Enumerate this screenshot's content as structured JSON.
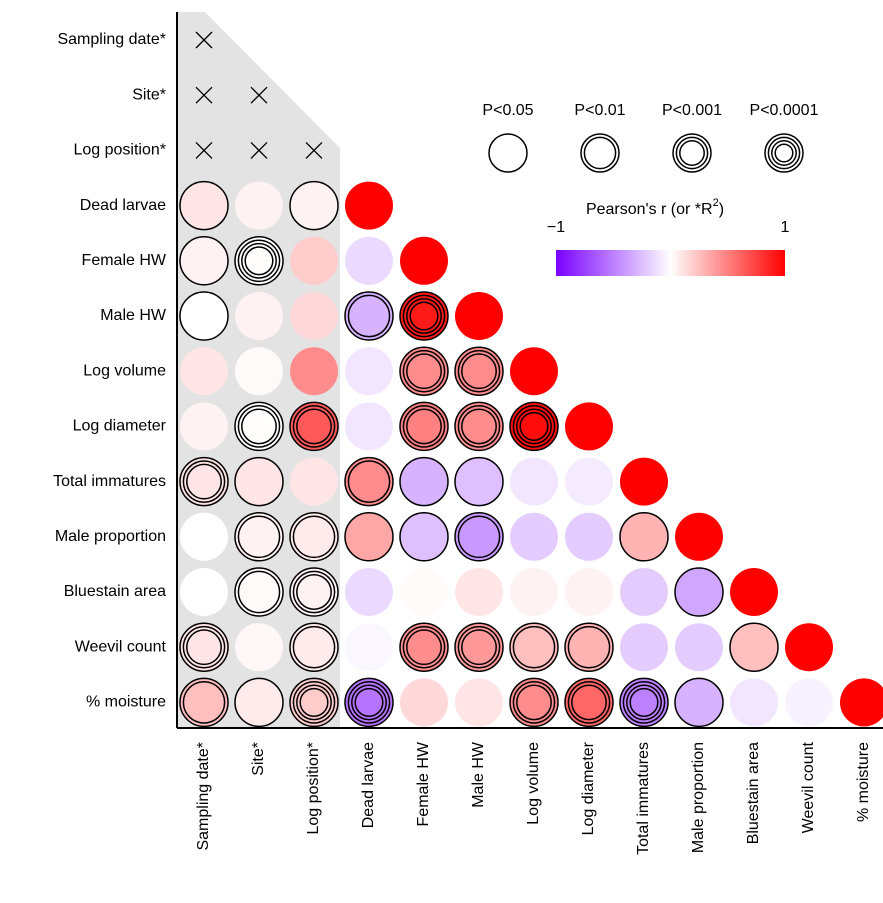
{
  "chart_data": {
    "type": "correlation",
    "variables": [
      "Sampling date*",
      "Site*",
      "Log position*",
      "Dead larvae",
      "Female HW",
      "Male HW",
      "Log volume",
      "Log diameter",
      "Total immatures",
      "Male proportion",
      "Bluestain area",
      "Weevil count",
      "% moisture"
    ],
    "values": [
      [
        null
      ],
      [
        null,
        null
      ],
      [
        null,
        null,
        null
      ],
      [
        0.1,
        0.05,
        0.05,
        1
      ],
      [
        0.05,
        0.01,
        0.2,
        -0.15,
        1
      ],
      [
        0.0,
        0.05,
        0.15,
        -0.3,
        0.9,
        1
      ],
      [
        0.1,
        0.02,
        0.45,
        -0.1,
        0.45,
        0.45,
        1
      ],
      [
        0.05,
        0.01,
        0.65,
        -0.1,
        0.5,
        0.45,
        0.95,
        1
      ],
      [
        0.1,
        0.1,
        0.1,
        0.45,
        -0.3,
        -0.25,
        -0.1,
        -0.08,
        1
      ],
      [
        0.0,
        0.05,
        0.08,
        0.35,
        -0.25,
        -0.4,
        -0.2,
        -0.2,
        0.3,
        1
      ],
      [
        0.0,
        0.02,
        0.05,
        -0.15,
        0.02,
        0.1,
        0.05,
        0.05,
        -0.2,
        -0.35,
        1
      ],
      [
        0.1,
        0.03,
        0.08,
        -0.03,
        0.45,
        0.4,
        0.25,
        0.3,
        -0.2,
        -0.2,
        0.25,
        1
      ],
      [
        0.25,
        0.08,
        0.2,
        -0.55,
        0.15,
        0.1,
        0.45,
        0.6,
        -0.5,
        -0.3,
        -0.1,
        -0.05,
        1
      ]
    ],
    "significance_rings": [
      [
        null
      ],
      [
        null,
        null
      ],
      [
        null,
        null,
        null
      ],
      [
        1,
        0,
        1,
        0
      ],
      [
        1,
        4,
        0,
        0,
        0
      ],
      [
        1,
        0,
        0,
        2,
        4,
        0
      ],
      [
        0,
        0,
        0,
        0,
        3,
        3,
        0
      ],
      [
        0,
        3,
        3,
        0,
        3,
        3,
        4,
        0
      ],
      [
        3,
        1,
        0,
        2,
        1,
        1,
        0,
        0,
        0
      ],
      [
        0,
        2,
        2,
        1,
        1,
        2,
        0,
        0,
        1,
        0
      ],
      [
        0,
        2,
        3,
        0,
        0,
        0,
        0,
        0,
        0,
        1,
        0
      ],
      [
        3,
        0,
        2,
        0,
        3,
        3,
        2,
        2,
        0,
        0,
        1,
        0
      ],
      [
        2,
        1,
        4,
        4,
        0,
        0,
        3,
        3,
        4,
        1,
        0,
        0,
        0
      ]
    ],
    "significance_legend": [
      {
        "label": "P<0.05",
        "rings": 1
      },
      {
        "label": "P<0.01",
        "rings": 2
      },
      {
        "label": "P<0.001",
        "rings": 3
      },
      {
        "label": "P<0.0001",
        "rings": 4
      }
    ],
    "colorbar_label": "Pearson's r (or *R",
    "colorbar_label_sup": "2",
    "colorbar_label_end": ")",
    "clim": [
      -1,
      1
    ],
    "cticks": [
      {
        "value": -1,
        "label": "−1"
      },
      1
    ],
    "colors": [
      "#7a00ff",
      "#ffffff",
      "#ff0000"
    ]
  }
}
